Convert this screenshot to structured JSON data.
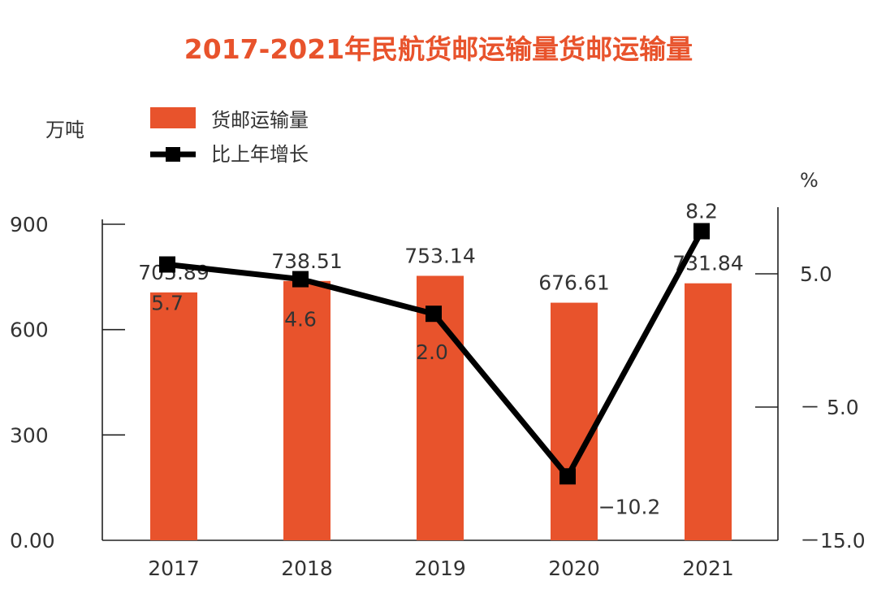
{
  "chart_data": {
    "type": "bar",
    "title": "2017-2021年民航货邮运输量货邮运输量",
    "categories": [
      "2017",
      "2018",
      "2019",
      "2020",
      "2021"
    ],
    "left_axis": {
      "unit": "万吨",
      "ylim": [
        0,
        900
      ],
      "ticks": [
        0,
        300,
        600,
        900
      ],
      "tick_labels": [
        "0.00",
        "300",
        "600",
        "900"
      ]
    },
    "right_axis": {
      "unit": "%",
      "ylim": [
        -15,
        10
      ],
      "ticks": [
        -15,
        -5,
        5
      ],
      "tick_labels": [
        "－15.0",
        "－ 5.0",
        "5.0"
      ]
    },
    "series": [
      {
        "name": "货邮运输量",
        "type": "bar",
        "color": "#e8532c",
        "values": [
          705.89,
          738.51,
          753.14,
          676.61,
          731.84
        ],
        "labels": [
          "705.89",
          "738.51",
          "753.14",
          "676.61",
          "731.84"
        ]
      },
      {
        "name": "比上年增长",
        "type": "line",
        "color": "#000000",
        "axis": "right",
        "values": [
          5.7,
          4.6,
          2.0,
          -10.2,
          8.2
        ],
        "labels": [
          "5.7",
          "4.6",
          "2.0",
          "−10.2",
          "8.2"
        ]
      }
    ]
  }
}
